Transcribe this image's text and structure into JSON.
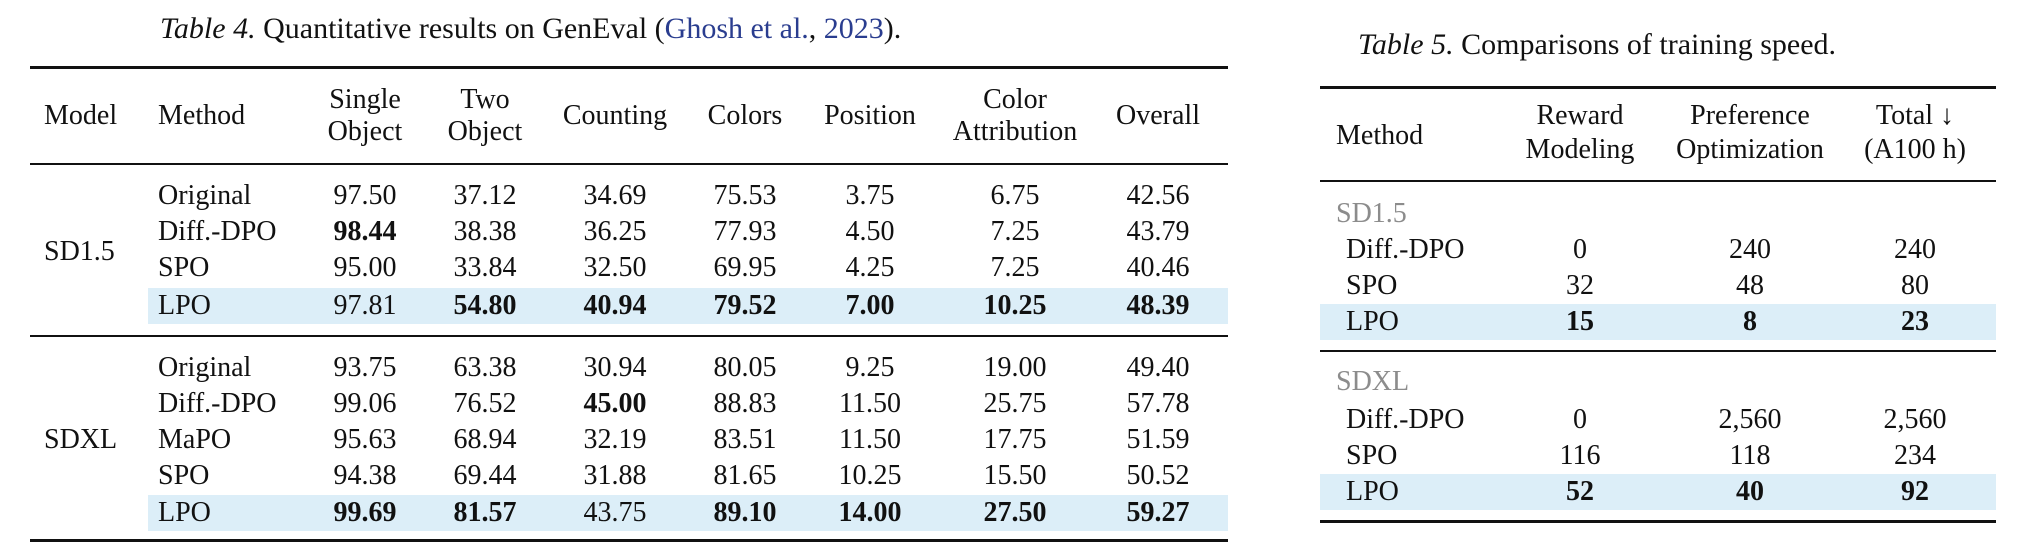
{
  "table4": {
    "label": "Table 4.",
    "caption_text": "Quantitative results on GenEval (",
    "cite_author": "Ghosh et al.",
    "cite_sep": ", ",
    "cite_year": "2023",
    "caption_end": ").",
    "headers": {
      "model": "Model",
      "method": "Method",
      "single": [
        "Single",
        "Object"
      ],
      "two": [
        "Two",
        "Object"
      ],
      "counting": "Counting",
      "colors": "Colors",
      "position": "Position",
      "color_attr": [
        "Color",
        "Attribution"
      ],
      "overall": "Overall"
    },
    "groups": [
      {
        "model": "SD1.5",
        "rows": [
          {
            "method": "Original",
            "values": [
              "97.50",
              "37.12",
              "34.69",
              "75.53",
              "3.75",
              "6.75",
              "42.56"
            ],
            "bold": [
              false,
              false,
              false,
              false,
              false,
              false,
              false
            ],
            "highlight": false
          },
          {
            "method": "Diff.-DPO",
            "values": [
              "98.44",
              "38.38",
              "36.25",
              "77.93",
              "4.50",
              "7.25",
              "43.79"
            ],
            "bold": [
              true,
              false,
              false,
              false,
              false,
              false,
              false
            ],
            "highlight": false
          },
          {
            "method": "SPO",
            "values": [
              "95.00",
              "33.84",
              "32.50",
              "69.95",
              "4.25",
              "7.25",
              "40.46"
            ],
            "bold": [
              false,
              false,
              false,
              false,
              false,
              false,
              false
            ],
            "highlight": false
          },
          {
            "method": "LPO",
            "values": [
              "97.81",
              "54.80",
              "40.94",
              "79.52",
              "7.00",
              "10.25",
              "48.39"
            ],
            "bold": [
              false,
              true,
              true,
              true,
              true,
              true,
              true
            ],
            "highlight": true
          }
        ]
      },
      {
        "model": "SDXL",
        "rows": [
          {
            "method": "Original",
            "values": [
              "93.75",
              "63.38",
              "30.94",
              "80.05",
              "9.25",
              "19.00",
              "49.40"
            ],
            "bold": [
              false,
              false,
              false,
              false,
              false,
              false,
              false
            ],
            "highlight": false
          },
          {
            "method": "Diff.-DPO",
            "values": [
              "99.06",
              "76.52",
              "45.00",
              "88.83",
              "11.50",
              "25.75",
              "57.78"
            ],
            "bold": [
              false,
              false,
              true,
              false,
              false,
              false,
              false
            ],
            "highlight": false
          },
          {
            "method": "MaPO",
            "values": [
              "95.63",
              "68.94",
              "32.19",
              "83.51",
              "11.50",
              "17.75",
              "51.59"
            ],
            "bold": [
              false,
              false,
              false,
              false,
              false,
              false,
              false
            ],
            "highlight": false
          },
          {
            "method": "SPO",
            "values": [
              "94.38",
              "69.44",
              "31.88",
              "81.65",
              "10.25",
              "15.50",
              "50.52"
            ],
            "bold": [
              false,
              false,
              false,
              false,
              false,
              false,
              false
            ],
            "highlight": false
          },
          {
            "method": "LPO",
            "values": [
              "99.69",
              "81.57",
              "43.75",
              "89.10",
              "14.00",
              "27.50",
              "59.27"
            ],
            "bold": [
              true,
              true,
              false,
              true,
              true,
              true,
              true
            ],
            "highlight": true
          }
        ]
      }
    ]
  },
  "table5": {
    "label": "Table 5.",
    "caption_text": "Comparisons of training speed.",
    "headers": {
      "method": "Method",
      "reward": [
        "Reward",
        "Modeling"
      ],
      "pref": [
        "Preference",
        "Optimization"
      ],
      "total": [
        "Total ↓",
        "(A100 h)"
      ]
    },
    "groups": [
      {
        "name": "SD1.5",
        "rows": [
          {
            "method": "Diff.-DPO",
            "values": [
              "0",
              "240",
              "240"
            ],
            "bold": false,
            "highlight": false
          },
          {
            "method": "SPO",
            "values": [
              "32",
              "48",
              "80"
            ],
            "bold": false,
            "highlight": false
          },
          {
            "method": "LPO",
            "values": [
              "15",
              "8",
              "23"
            ],
            "bold": true,
            "highlight": true
          }
        ]
      },
      {
        "name": "SDXL",
        "rows": [
          {
            "method": "Diff.-DPO",
            "values": [
              "0",
              "2,560",
              "2,560"
            ],
            "bold": false,
            "highlight": false
          },
          {
            "method": "SPO",
            "values": [
              "116",
              "118",
              "234"
            ],
            "bold": false,
            "highlight": false
          },
          {
            "method": "LPO",
            "values": [
              "52",
              "40",
              "92"
            ],
            "bold": true,
            "highlight": true
          }
        ]
      }
    ]
  }
}
